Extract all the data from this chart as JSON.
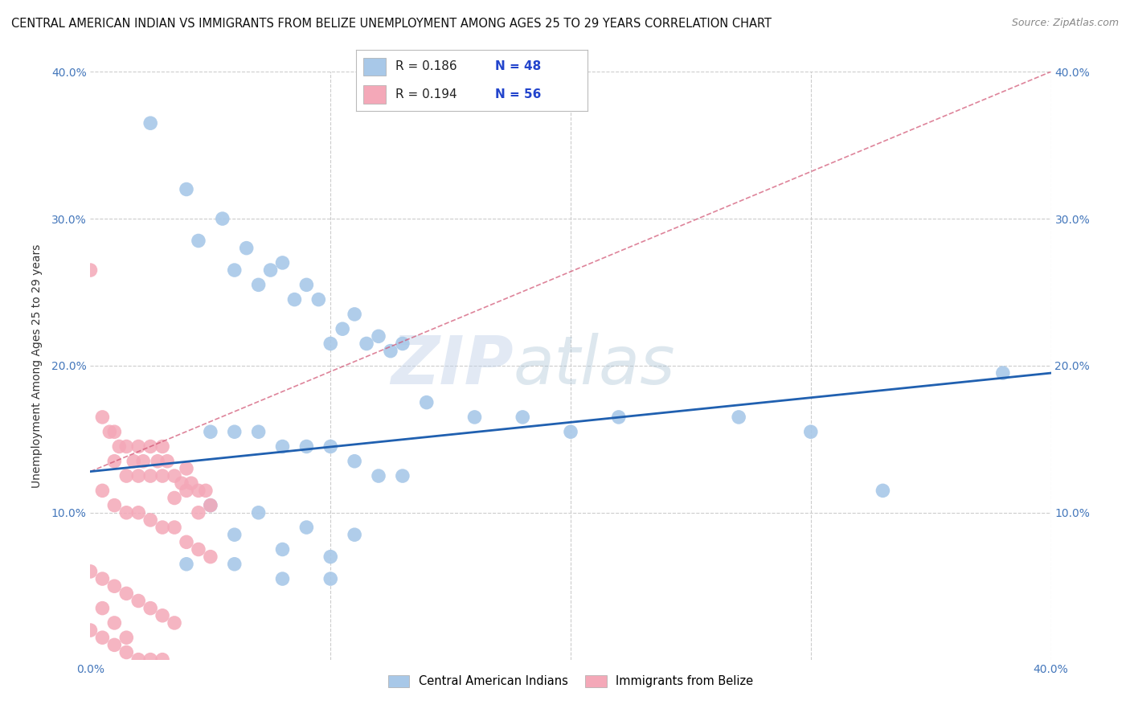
{
  "title": "CENTRAL AMERICAN INDIAN VS IMMIGRANTS FROM BELIZE UNEMPLOYMENT AMONG AGES 25 TO 29 YEARS CORRELATION CHART",
  "source": "Source: ZipAtlas.com",
  "ylabel": "Unemployment Among Ages 25 to 29 years",
  "xlim": [
    0.0,
    0.4
  ],
  "ylim": [
    0.0,
    0.4
  ],
  "xticks": [
    0.0,
    0.1,
    0.2,
    0.3,
    0.4
  ],
  "yticks": [
    0.0,
    0.1,
    0.2,
    0.3,
    0.4
  ],
  "xticklabels": [
    "0.0%",
    "",
    "",
    "",
    "40.0%"
  ],
  "yticklabels": [
    "",
    "10.0%",
    "20.0%",
    "30.0%",
    "40.0%"
  ],
  "legend_labels": [
    "Central American Indians",
    "Immigrants from Belize"
  ],
  "color_blue": "#A8C8E8",
  "color_pink": "#F4A8B8",
  "trend_color_blue": "#2060B0",
  "trend_color_pink": "#D05070",
  "watermark_zip": "ZIP",
  "watermark_atlas": "atlas",
  "blue_points_x": [
    0.025,
    0.04,
    0.045,
    0.055,
    0.06,
    0.065,
    0.07,
    0.075,
    0.08,
    0.085,
    0.09,
    0.095,
    0.1,
    0.105,
    0.11,
    0.115,
    0.12,
    0.125,
    0.13,
    0.14,
    0.16,
    0.18,
    0.2,
    0.22,
    0.27,
    0.3,
    0.33,
    0.38,
    0.05,
    0.06,
    0.07,
    0.08,
    0.09,
    0.1,
    0.11,
    0.12,
    0.13,
    0.05,
    0.07,
    0.09,
    0.11,
    0.06,
    0.08,
    0.1,
    0.04,
    0.06,
    0.08,
    0.1
  ],
  "blue_points_y": [
    0.365,
    0.32,
    0.285,
    0.3,
    0.265,
    0.28,
    0.255,
    0.265,
    0.27,
    0.245,
    0.255,
    0.245,
    0.215,
    0.225,
    0.235,
    0.215,
    0.22,
    0.21,
    0.215,
    0.175,
    0.165,
    0.165,
    0.155,
    0.165,
    0.165,
    0.155,
    0.115,
    0.195,
    0.155,
    0.155,
    0.155,
    0.145,
    0.145,
    0.145,
    0.135,
    0.125,
    0.125,
    0.105,
    0.1,
    0.09,
    0.085,
    0.085,
    0.075,
    0.07,
    0.065,
    0.065,
    0.055,
    0.055
  ],
  "pink_points_x": [
    0.0,
    0.005,
    0.008,
    0.01,
    0.01,
    0.012,
    0.015,
    0.015,
    0.018,
    0.02,
    0.02,
    0.022,
    0.025,
    0.025,
    0.028,
    0.03,
    0.03,
    0.032,
    0.035,
    0.035,
    0.038,
    0.04,
    0.04,
    0.042,
    0.045,
    0.045,
    0.048,
    0.05,
    0.005,
    0.01,
    0.015,
    0.02,
    0.025,
    0.03,
    0.035,
    0.04,
    0.045,
    0.05,
    0.0,
    0.005,
    0.01,
    0.015,
    0.02,
    0.025,
    0.03,
    0.035,
    0.0,
    0.005,
    0.01,
    0.015,
    0.02,
    0.025,
    0.03,
    0.005,
    0.01,
    0.015
  ],
  "pink_points_y": [
    0.265,
    0.165,
    0.155,
    0.155,
    0.135,
    0.145,
    0.145,
    0.125,
    0.135,
    0.145,
    0.125,
    0.135,
    0.145,
    0.125,
    0.135,
    0.145,
    0.125,
    0.135,
    0.125,
    0.11,
    0.12,
    0.13,
    0.115,
    0.12,
    0.115,
    0.1,
    0.115,
    0.105,
    0.115,
    0.105,
    0.1,
    0.1,
    0.095,
    0.09,
    0.09,
    0.08,
    0.075,
    0.07,
    0.06,
    0.055,
    0.05,
    0.045,
    0.04,
    0.035,
    0.03,
    0.025,
    0.02,
    0.015,
    0.01,
    0.005,
    0.0,
    0.0,
    0.0,
    0.035,
    0.025,
    0.015
  ],
  "blue_trend_x": [
    0.0,
    0.4
  ],
  "blue_trend_y": [
    0.128,
    0.195
  ],
  "pink_trend_x": [
    0.0,
    0.4
  ],
  "pink_trend_y": [
    0.128,
    0.4
  ],
  "background_color": "#ffffff",
  "grid_color": "#cccccc",
  "title_fontsize": 10.5,
  "axis_fontsize": 10,
  "tick_fontsize": 10
}
